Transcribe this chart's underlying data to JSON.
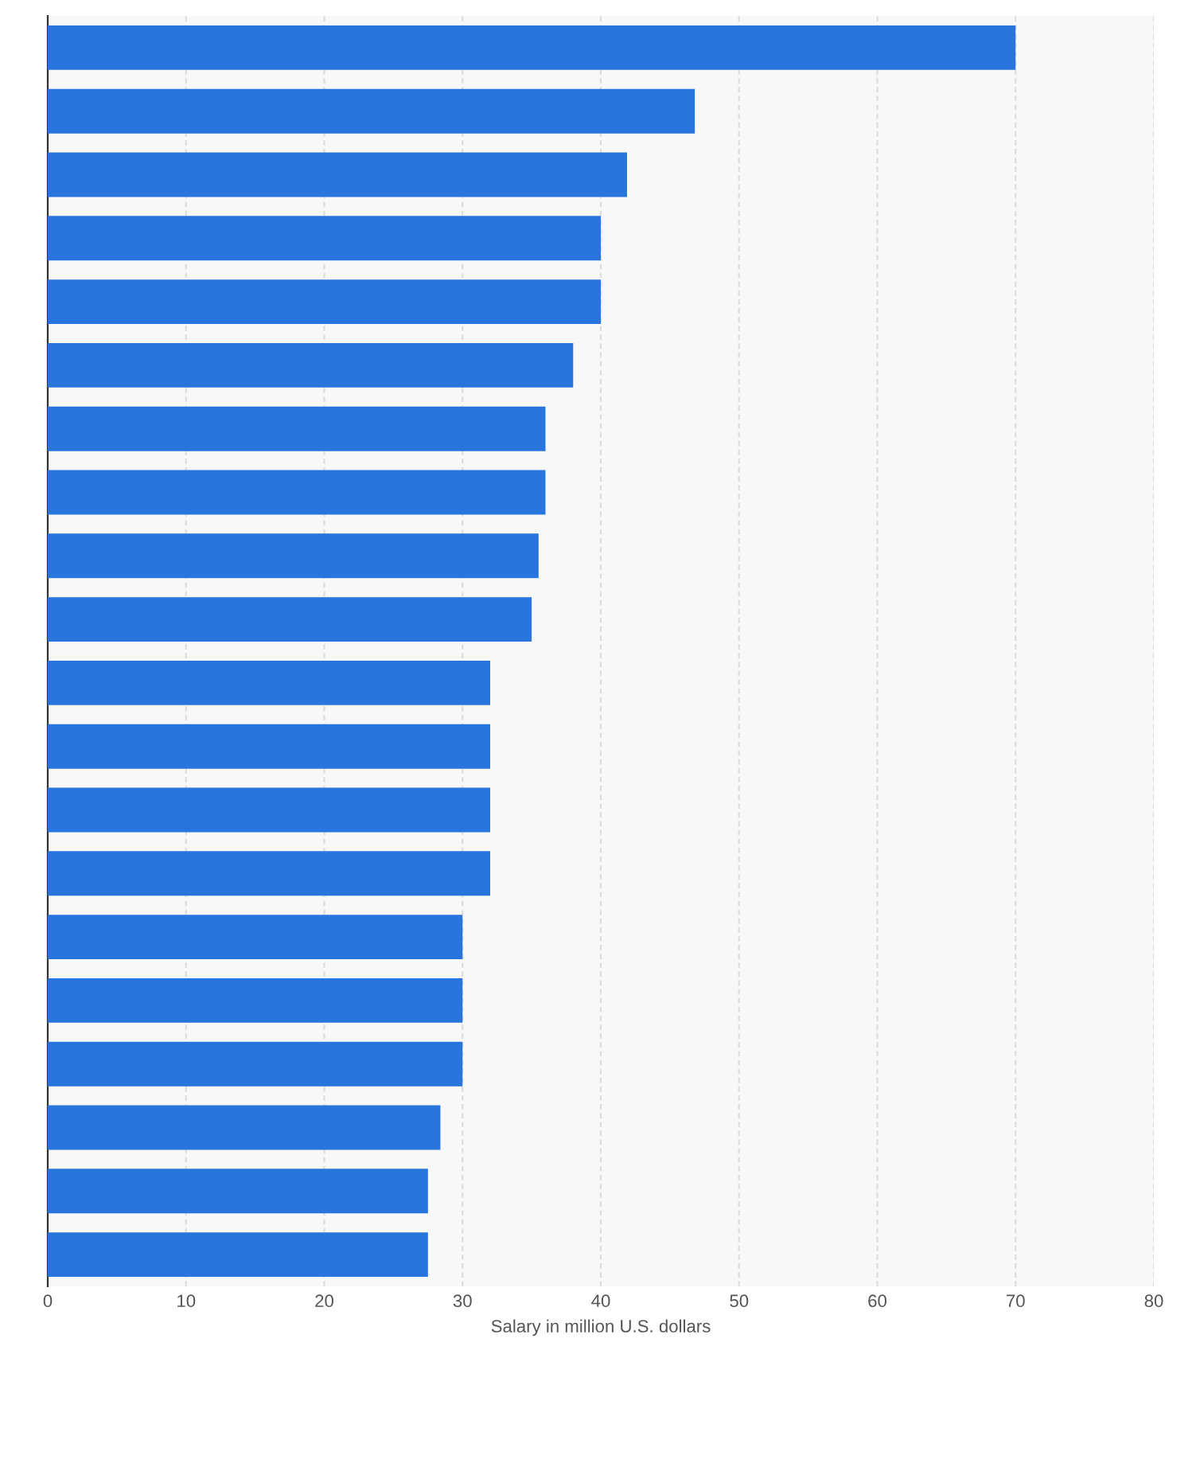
{
  "chart_data": {
    "type": "bar",
    "orientation": "horizontal",
    "xlabel": "Salary in million U.S. dollars",
    "categories": [
      null,
      null,
      null,
      null,
      null,
      null,
      null,
      null,
      null,
      null,
      null,
      null,
      null,
      null,
      null,
      null,
      null,
      null,
      null,
      null
    ],
    "values": [
      70,
      46.8,
      41.9,
      40,
      40,
      38,
      36,
      36,
      35.5,
      35,
      32,
      32,
      32,
      32,
      30,
      30,
      30,
      28.4,
      27.5,
      27.5
    ],
    "color": "#2876dd",
    "xlim": [
      0,
      80
    ],
    "xticks": [
      0,
      10,
      20,
      30,
      40,
      50,
      60,
      70,
      80
    ],
    "grid": "x",
    "tick_labels": "x"
  }
}
